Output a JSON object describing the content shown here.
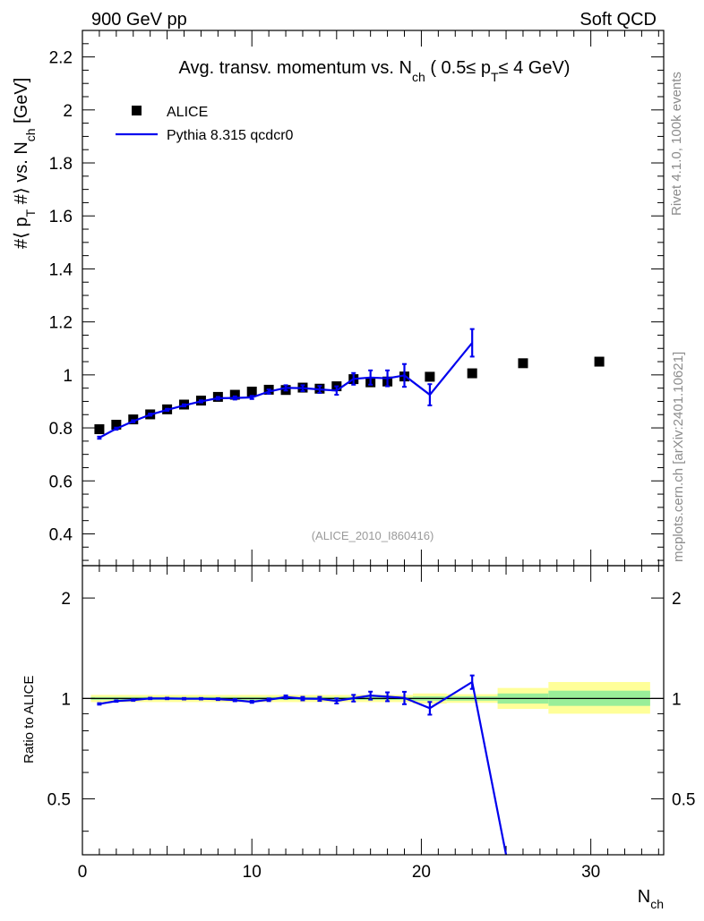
{
  "header": {
    "left": "900 GeV pp",
    "right": "Soft QCD"
  },
  "side_labels": {
    "rivet": "Rivet 4.1.0,  100k events",
    "mcplots": "mcplots.cern.ch [arXiv:2401.10621]"
  },
  "watermark": "(ALICE_2010_I860416)",
  "chart_data": [
    {
      "type": "scatter",
      "title": "Avg. transv. momentum vs. N_ch ( 0.5≤ p_T≤ 4 GeV)",
      "xlabel": "N_ch",
      "ylabel": "#⟨ p_T #⟩ vs. N_ch [GeV]",
      "xlim": [
        0,
        34.3
      ],
      "ylim": [
        0.28,
        2.3
      ],
      "xticks": [
        0,
        10,
        20,
        30
      ],
      "yticks": [
        0.4,
        0.6,
        0.8,
        1,
        1.2,
        1.4,
        1.6,
        1.8,
        2,
        2.2
      ],
      "ytick_labels": [
        "0.4",
        "0.6",
        "0.8",
        "1",
        "1.2",
        "1.4",
        "1.6",
        "1.8",
        "2",
        "2.2"
      ],
      "legend": [
        "ALICE",
        "Pythia 8.315 qcdcr0"
      ],
      "legend_position": "top-left",
      "series": [
        {
          "name": "ALICE",
          "style": "markers",
          "color": "#000000",
          "x": [
            1,
            2,
            3,
            4,
            5,
            6,
            7,
            8,
            9,
            10,
            11,
            12,
            13,
            14,
            15,
            16,
            17,
            18,
            19,
            20.5,
            23,
            26,
            30.5
          ],
          "y": [
            0.795,
            0.812,
            0.832,
            0.851,
            0.87,
            0.888,
            0.903,
            0.917,
            0.925,
            0.937,
            0.944,
            0.943,
            0.952,
            0.948,
            0.957,
            0.984,
            0.972,
            0.975,
            0.994,
            0.993,
            1.006,
            1.044,
            1.05
          ]
        },
        {
          "name": "Pythia 8.315 qcdcr0",
          "style": "line",
          "color": "#0000ee",
          "x": [
            1,
            2,
            3,
            4,
            5,
            6,
            7,
            8,
            9,
            10,
            11,
            12,
            13,
            14,
            15,
            16,
            17,
            18,
            19,
            20.5,
            23
          ],
          "y": [
            0.763,
            0.797,
            0.825,
            0.85,
            0.868,
            0.885,
            0.9,
            0.912,
            0.913,
            0.915,
            0.937,
            0.951,
            0.95,
            0.945,
            0.941,
            0.985,
            0.99,
            0.987,
            0.998,
            0.925,
            1.121
          ],
          "err": [
            0.004,
            0.004,
            0.004,
            0.004,
            0.004,
            0.004,
            0.004,
            0.005,
            0.006,
            0.006,
            0.008,
            0.01,
            0.011,
            0.013,
            0.016,
            0.022,
            0.027,
            0.03,
            0.043,
            0.04,
            0.052
          ]
        }
      ]
    },
    {
      "type": "line",
      "ylabel": "Ratio to ALICE",
      "xlabel": "N_ch",
      "xlim": [
        0,
        34.3
      ],
      "ylim": [
        0.34,
        2.5
      ],
      "yscale": "log",
      "yticks": [
        0.5,
        1,
        2
      ],
      "ytick_labels": [
        "0.5",
        "1",
        "2"
      ],
      "xticks": [
        0,
        10,
        20,
        30
      ],
      "xtick_labels": [
        "0",
        "10",
        "20",
        "30"
      ],
      "bands": [
        {
          "x0": 0.5,
          "x1": 19.5,
          "yellow": [
            0.975,
            1.025
          ],
          "green": [
            0.99,
            1.01
          ]
        },
        {
          "x0": 19.5,
          "x1": 21.5,
          "yellow": [
            0.965,
            1.035
          ],
          "green": [
            0.985,
            1.015
          ]
        },
        {
          "x0": 21.5,
          "x1": 24.5,
          "yellow": [
            0.97,
            1.03
          ],
          "green": [
            0.985,
            1.015
          ]
        },
        {
          "x0": 24.5,
          "x1": 27.5,
          "yellow": [
            0.93,
            1.075
          ],
          "green": [
            0.965,
            1.035
          ]
        },
        {
          "x0": 27.5,
          "x1": 33.5,
          "yellow": [
            0.9,
            1.12
          ],
          "green": [
            0.95,
            1.055
          ]
        }
      ],
      "series": [
        {
          "name": "Pythia 8.315 qcdcr0 / ALICE",
          "color": "#0000ee",
          "x": [
            1,
            2,
            3,
            4,
            5,
            6,
            7,
            8,
            9,
            10,
            11,
            12,
            13,
            14,
            15,
            16,
            17,
            18,
            19,
            20.5,
            23
          ],
          "y": [
            0.963,
            0.982,
            0.989,
            1.0,
            1.0,
            0.998,
            0.998,
            0.995,
            0.988,
            0.977,
            0.991,
            1.01,
            0.999,
            0.997,
            0.983,
            1.002,
            1.02,
            1.012,
            1.004,
            0.935,
            1.12
          ],
          "err": [
            0.005,
            0.005,
            0.005,
            0.005,
            0.005,
            0.005,
            0.005,
            0.006,
            0.007,
            0.007,
            0.009,
            0.011,
            0.012,
            0.014,
            0.017,
            0.023,
            0.028,
            0.031,
            0.043,
            0.041,
            0.052
          ],
          "tail": {
            "x": [
              23,
              25
            ],
            "y": [
              1.12,
              0.34
            ]
          }
        }
      ]
    }
  ]
}
